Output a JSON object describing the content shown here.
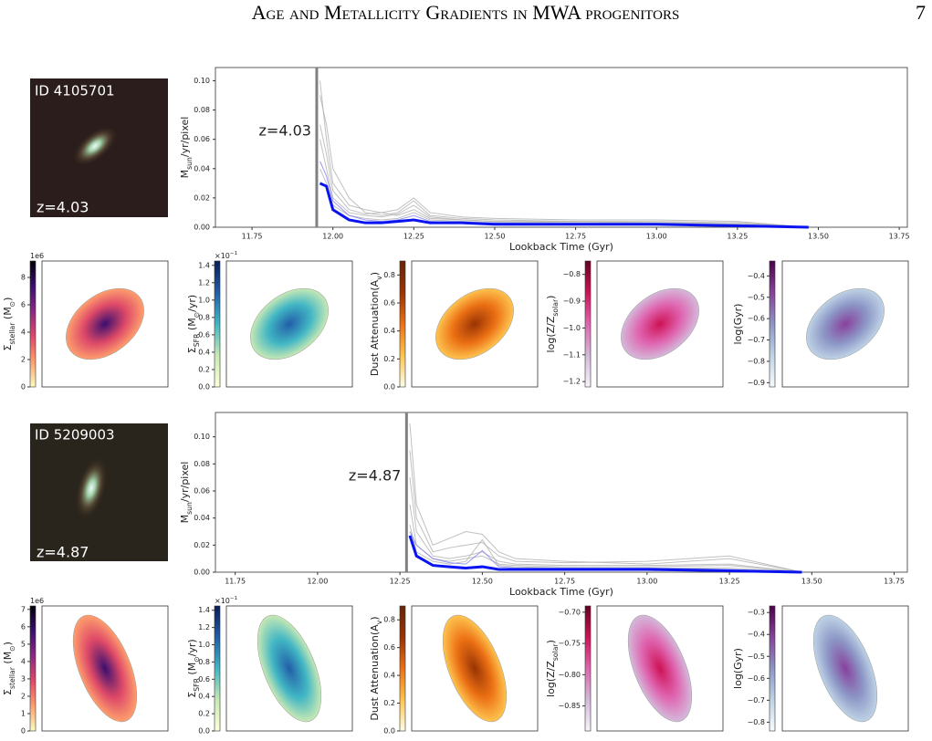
{
  "header": {
    "title": "Age and Metallicity Gradients in MWA progenitors",
    "page": "7"
  },
  "galaxies": [
    {
      "id": "ID 4105701",
      "z": "z=4.03"
    },
    {
      "id": "ID 5209003",
      "z": "z=4.87"
    }
  ],
  "chart_data": [
    {
      "type": "line",
      "x_label": "Lookback Time (Gyr)",
      "y_label": [
        "M",
        "sun",
        "/yr/pixel"
      ],
      "annotation": "z=4.03",
      "z_line": 11.95,
      "xlim": [
        11.637,
        13.775
      ],
      "ylim": [
        0,
        0.109
      ],
      "xticks": [
        11.75,
        {
          "value": 12,
          "label": "12.00"
        },
        12.25,
        {
          "value": 12.5,
          "label": "12.50"
        },
        12.75,
        {
          "value": 13,
          "label": "13.00"
        },
        13.25,
        {
          "value": 13.5,
          "label": "13.50"
        },
        13.75
      ],
      "yticks": [
        {
          "value": 0,
          "label": "0.00"
        },
        0.02,
        0.04,
        0.06,
        0.08,
        {
          "value": 0.1,
          "label": "0.10"
        }
      ],
      "x": [
        11.96,
        11.98,
        12.0,
        12.05,
        12.1,
        12.15,
        12.2,
        12.25,
        12.3,
        12.4,
        12.5,
        12.75,
        13.0,
        13.25,
        13.47
      ],
      "series": [
        {
          "color": "#b0b0b0",
          "values": [
            0.1,
            0.06,
            0.03,
            0.015,
            0.012,
            0.01,
            0.012,
            0.02,
            0.01,
            0.007,
            0.006,
            0.005,
            0.005,
            0.004,
            0
          ]
        },
        {
          "color": "#b0b0b0",
          "values": [
            0.09,
            0.07,
            0.04,
            0.02,
            0.01,
            0.008,
            0.01,
            0.018,
            0.008,
            0.006,
            0.005,
            0.004,
            0.004,
            0.003,
            0
          ]
        },
        {
          "color": "#b0b0b0",
          "values": [
            0.06,
            0.04,
            0.02,
            0.01,
            0.008,
            0.007,
            0.009,
            0.015,
            0.007,
            0.005,
            0.004,
            0.003,
            0.003,
            0.002,
            0
          ]
        },
        {
          "color": "#b0b0b0",
          "values": [
            0.07,
            0.05,
            0.025,
            0.012,
            0.009,
            0.01,
            0.008,
            0.012,
            0.006,
            0.005,
            0.004,
            0.004,
            0.003,
            0.003,
            0
          ]
        },
        {
          "color": "#b0b0b0",
          "values": [
            0.04,
            0.03,
            0.015,
            0.008,
            0.006,
            0.005,
            0.006,
            0.01,
            0.005,
            0.004,
            0.003,
            0.003,
            0.002,
            0.002,
            0
          ]
        },
        {
          "color": "#8080f0",
          "values": [
            0.045,
            0.035,
            0.018,
            0.008,
            0.005,
            0.004,
            0.005,
            0.008,
            0.004,
            0.003,
            0.003,
            0.002,
            0.002,
            0.001,
            0
          ]
        },
        {
          "color": "#0a14f0",
          "values": [
            0.03,
            0.028,
            0.012,
            0.005,
            0.003,
            0.003,
            0.004,
            0.005,
            0.003,
            0.003,
            0.002,
            0.002,
            0.002,
            0.001,
            0
          ]
        }
      ]
    },
    {
      "type": "colorbar",
      "label": [
        "Σ",
        "stellar",
        " (M",
        "⊙",
        ")"
      ],
      "offset_label": [
        "1e6"
      ],
      "colors": [
        "#fcfdbf",
        "#fe9f6d",
        "#de4968",
        "#8c2981",
        "#3b0f70",
        "#000004"
      ],
      "ylim": [
        0,
        9.2
      ],
      "yticks": [
        0,
        2,
        4,
        6,
        8
      ]
    },
    {
      "type": "colorbar",
      "label": [
        "Σ",
        "SFR",
        " (M",
        "⊙",
        "/yr)"
      ],
      "offset_label": [
        "×10",
        "−1"
      ],
      "colors": [
        "#ffffd9",
        "#c7e9b4",
        "#41b6c4",
        "#225ea8",
        "#081d58"
      ],
      "ylim": [
        0,
        1.45
      ],
      "yticks": [
        {
          "value": 0,
          "label": "0.0"
        },
        0.2,
        0.4,
        0.6,
        0.8,
        {
          "value": 1,
          "label": "1.0"
        },
        1.2,
        1.4
      ]
    },
    {
      "type": "colorbar",
      "label": [
        "Dust Attenuation(A",
        "v",
        ")"
      ],
      "colors": [
        "#ffffe5",
        "#fec44f",
        "#ec7014",
        "#993404",
        "#662506"
      ],
      "ylim": [
        0,
        0.9
      ],
      "yticks": [
        {
          "value": 0,
          "label": "0.0"
        },
        0.2,
        0.4,
        0.6,
        0.8
      ]
    },
    {
      "type": "colorbar",
      "label": [
        "log(Z/Z",
        "solar",
        ")"
      ],
      "colors": [
        "#f7f4f9",
        "#d4b9da",
        "#df65b0",
        "#ce1256",
        "#67001f"
      ],
      "ylim": [
        -1.22,
        -0.75
      ],
      "yticks": [
        {
          "value": -1.2,
          "label": "−1.2"
        },
        {
          "value": -1.1,
          "label": "−1.1"
        },
        {
          "value": -1.0,
          "label": "−1.0"
        },
        {
          "value": -0.9,
          "label": "−0.9"
        },
        {
          "value": -0.8,
          "label": "−0.8"
        }
      ]
    },
    {
      "type": "colorbar",
      "label": [
        "log(Gyr)"
      ],
      "colors": [
        "#f7fcfd",
        "#bfd3e6",
        "#8c96c6",
        "#88419d",
        "#4d004b"
      ],
      "ylim": [
        -0.92,
        -0.33
      ],
      "yticks": [
        {
          "value": -0.9,
          "label": "−0.9"
        },
        {
          "value": -0.8,
          "label": "−0.8"
        },
        {
          "value": -0.7,
          "label": "−0.7"
        },
        {
          "value": -0.6,
          "label": "−0.6"
        },
        {
          "value": -0.5,
          "label": "−0.5"
        },
        {
          "value": -0.4,
          "label": "−0.4"
        }
      ]
    },
    {
      "type": "line",
      "x_label": "Lookback Time (Gyr)",
      "y_label": [
        "M",
        "sun",
        "/yr/pixel"
      ],
      "annotation": "z=4.87",
      "z_line": 12.27,
      "xlim": [
        11.69,
        13.79
      ],
      "ylim": [
        0,
        0.118
      ],
      "xticks": [
        11.75,
        {
          "value": 12,
          "label": "12.00"
        },
        12.25,
        {
          "value": 12.5,
          "label": "12.50"
        },
        12.75,
        {
          "value": 13,
          "label": "13.00"
        },
        13.25,
        {
          "value": 13.5,
          "label": "13.50"
        },
        13.75
      ],
      "yticks": [
        {
          "value": 0,
          "label": "0.00"
        },
        0.02,
        0.04,
        0.06,
        0.08,
        {
          "value": 0.1,
          "label": "0.10"
        }
      ],
      "x": [
        12.28,
        12.3,
        12.35,
        12.4,
        12.45,
        12.5,
        12.55,
        12.6,
        12.75,
        13.0,
        13.25,
        13.47
      ],
      "series": [
        {
          "color": "#b0b0b0",
          "values": [
            0.11,
            0.05,
            0.02,
            0.025,
            0.03,
            0.028,
            0.015,
            0.01,
            0.008,
            0.006,
            0.01,
            0
          ]
        },
        {
          "color": "#b0b0b0",
          "values": [
            0.09,
            0.04,
            0.015,
            0.018,
            0.02,
            0.022,
            0.012,
            0.008,
            0.007,
            0.008,
            0.012,
            0
          ]
        },
        {
          "color": "#b0b0b0",
          "values": [
            0.07,
            0.03,
            0.012,
            0.01,
            0.012,
            0.015,
            0.008,
            0.006,
            0.005,
            0.005,
            0.006,
            0
          ]
        },
        {
          "color": "#b0b0b0",
          "values": [
            0.05,
            0.02,
            0.01,
            0.008,
            0.01,
            0.012,
            0.006,
            0.005,
            0.004,
            0.004,
            0.005,
            0
          ]
        },
        {
          "color": "#b0b0b0",
          "values": [
            0.035,
            0.015,
            0.008,
            0.006,
            0.008,
            0.024,
            0.005,
            0.004,
            0.003,
            0.003,
            0.003,
            0
          ]
        },
        {
          "color": "#8080f0",
          "values": [
            0.03,
            0.02,
            0.01,
            0.007,
            0.006,
            0.016,
            0.004,
            0.003,
            0.003,
            0.003,
            0.002,
            0
          ]
        },
        {
          "color": "#0a14f0",
          "values": [
            0.027,
            0.012,
            0.005,
            0.004,
            0.003,
            0.004,
            0.002,
            0.002,
            0.002,
            0.002,
            0.001,
            0
          ]
        }
      ]
    },
    {
      "type": "colorbar",
      "label": [
        "Σ",
        "stellar",
        " (M",
        "⊙",
        ")"
      ],
      "offset_label": [
        "1e6"
      ],
      "colors": [
        "#fcfdbf",
        "#fe9f6d",
        "#de4968",
        "#8c2981",
        "#3b0f70",
        "#000004"
      ],
      "ylim": [
        0,
        7.2
      ],
      "yticks": [
        0,
        1,
        2,
        3,
        4,
        5,
        6,
        7
      ]
    },
    {
      "type": "colorbar",
      "label": [
        "Σ",
        "SFR",
        " (M",
        "⊙",
        "/yr)"
      ],
      "offset_label": [
        "×10",
        "−1"
      ],
      "colors": [
        "#ffffd9",
        "#c7e9b4",
        "#41b6c4",
        "#225ea8",
        "#081d58"
      ],
      "ylim": [
        0,
        1.45
      ],
      "yticks": [
        {
          "value": 0,
          "label": "0.0"
        },
        0.2,
        0.4,
        0.6,
        0.8,
        {
          "value": 1,
          "label": "1.0"
        },
        1.2,
        1.4
      ]
    },
    {
      "type": "colorbar",
      "label": [
        "Dust Attenuation(A",
        "v",
        ")"
      ],
      "colors": [
        "#ffffe5",
        "#fec44f",
        "#ec7014",
        "#993404",
        "#662506"
      ],
      "ylim": [
        0,
        0.9
      ],
      "yticks": [
        {
          "value": 0,
          "label": "0.0"
        },
        0.2,
        0.4,
        0.6,
        0.8
      ]
    },
    {
      "type": "colorbar",
      "label": [
        "log(Z/Z",
        "solar",
        ")"
      ],
      "colors": [
        "#f7f4f9",
        "#d4b9da",
        "#df65b0",
        "#ce1256",
        "#67001f"
      ],
      "ylim": [
        -0.89,
        -0.69
      ],
      "yticks": [
        {
          "value": -0.85,
          "label": "−0.85"
        },
        {
          "value": -0.8,
          "label": "−0.80"
        },
        {
          "value": -0.75,
          "label": "−0.75"
        },
        {
          "value": -0.7,
          "label": "−0.70"
        }
      ]
    },
    {
      "type": "colorbar",
      "label": [
        "log(Gyr)"
      ],
      "colors": [
        "#f7fcfd",
        "#bfd3e6",
        "#8c96c6",
        "#88419d",
        "#4d004b"
      ],
      "ylim": [
        -0.84,
        -0.27
      ],
      "yticks": [
        {
          "value": -0.8,
          "label": "−0.8"
        },
        {
          "value": -0.7,
          "label": "−0.7"
        },
        {
          "value": -0.6,
          "label": "−0.6"
        },
        {
          "value": -0.5,
          "label": "−0.5"
        },
        {
          "value": -0.4,
          "label": "−0.4"
        },
        {
          "value": -0.3,
          "label": "−0.3"
        }
      ]
    }
  ]
}
